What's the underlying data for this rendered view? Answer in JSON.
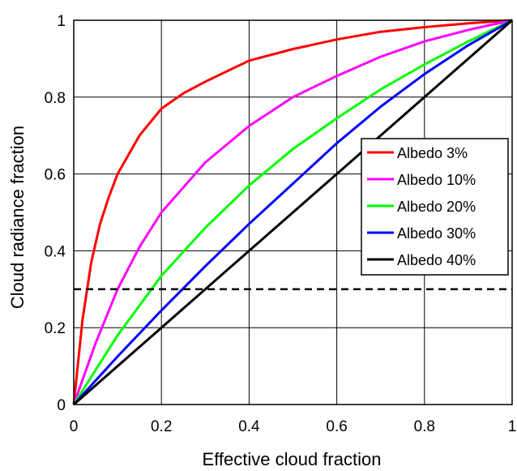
{
  "chart_data": {
    "type": "line",
    "xlabel": "Effective cloud fraction",
    "ylabel": "Cloud radiance fraction",
    "xlim": [
      0,
      1
    ],
    "ylim": [
      0,
      1
    ],
    "x_ticks": [
      "0",
      "0.2",
      "0.4",
      "0.6",
      "0.8",
      "1"
    ],
    "y_ticks": [
      "0",
      "0.2",
      "0.4",
      "0.6",
      "0.8",
      "1"
    ],
    "grid": true,
    "legend_position": "right",
    "reference_line": {
      "y": 0.3,
      "style": "dashed",
      "color": "#000000"
    },
    "series": [
      {
        "name": "Albedo 3%",
        "color": "#ff0000",
        "points": [
          [
            0,
            0
          ],
          [
            0.02,
            0.22
          ],
          [
            0.04,
            0.37
          ],
          [
            0.06,
            0.47
          ],
          [
            0.08,
            0.54
          ],
          [
            0.1,
            0.6
          ],
          [
            0.15,
            0.7
          ],
          [
            0.2,
            0.77
          ],
          [
            0.25,
            0.81
          ],
          [
            0.3,
            0.84
          ],
          [
            0.4,
            0.895
          ],
          [
            0.5,
            0.925
          ],
          [
            0.6,
            0.95
          ],
          [
            0.7,
            0.97
          ],
          [
            0.8,
            0.982
          ],
          [
            0.9,
            0.992
          ],
          [
            1,
            1
          ]
        ]
      },
      {
        "name": "Albedo 10%",
        "color": "#ff00ff",
        "points": [
          [
            0,
            0
          ],
          [
            0.05,
            0.16
          ],
          [
            0.1,
            0.3
          ],
          [
            0.15,
            0.41
          ],
          [
            0.2,
            0.5
          ],
          [
            0.3,
            0.63
          ],
          [
            0.4,
            0.725
          ],
          [
            0.5,
            0.8
          ],
          [
            0.6,
            0.855
          ],
          [
            0.7,
            0.905
          ],
          [
            0.8,
            0.945
          ],
          [
            0.9,
            0.975
          ],
          [
            1,
            1
          ]
        ]
      },
      {
        "name": "Albedo 20%",
        "color": "#00ff00",
        "points": [
          [
            0,
            0
          ],
          [
            0.1,
            0.18
          ],
          [
            0.2,
            0.335
          ],
          [
            0.3,
            0.46
          ],
          [
            0.4,
            0.57
          ],
          [
            0.5,
            0.665
          ],
          [
            0.6,
            0.745
          ],
          [
            0.7,
            0.82
          ],
          [
            0.8,
            0.885
          ],
          [
            0.9,
            0.945
          ],
          [
            1,
            1
          ]
        ]
      },
      {
        "name": "Albedo 30%",
        "color": "#0000ff",
        "points": [
          [
            0,
            0
          ],
          [
            0.1,
            0.125
          ],
          [
            0.2,
            0.245
          ],
          [
            0.3,
            0.36
          ],
          [
            0.4,
            0.47
          ],
          [
            0.5,
            0.575
          ],
          [
            0.6,
            0.68
          ],
          [
            0.7,
            0.775
          ],
          [
            0.8,
            0.86
          ],
          [
            0.9,
            0.935
          ],
          [
            1,
            1
          ]
        ]
      },
      {
        "name": "Albedo 40%",
        "color": "#000000",
        "points": [
          [
            0,
            0
          ],
          [
            0.2,
            0.2
          ],
          [
            0.4,
            0.4
          ],
          [
            0.6,
            0.6
          ],
          [
            0.8,
            0.8
          ],
          [
            1,
            1
          ]
        ]
      }
    ]
  }
}
